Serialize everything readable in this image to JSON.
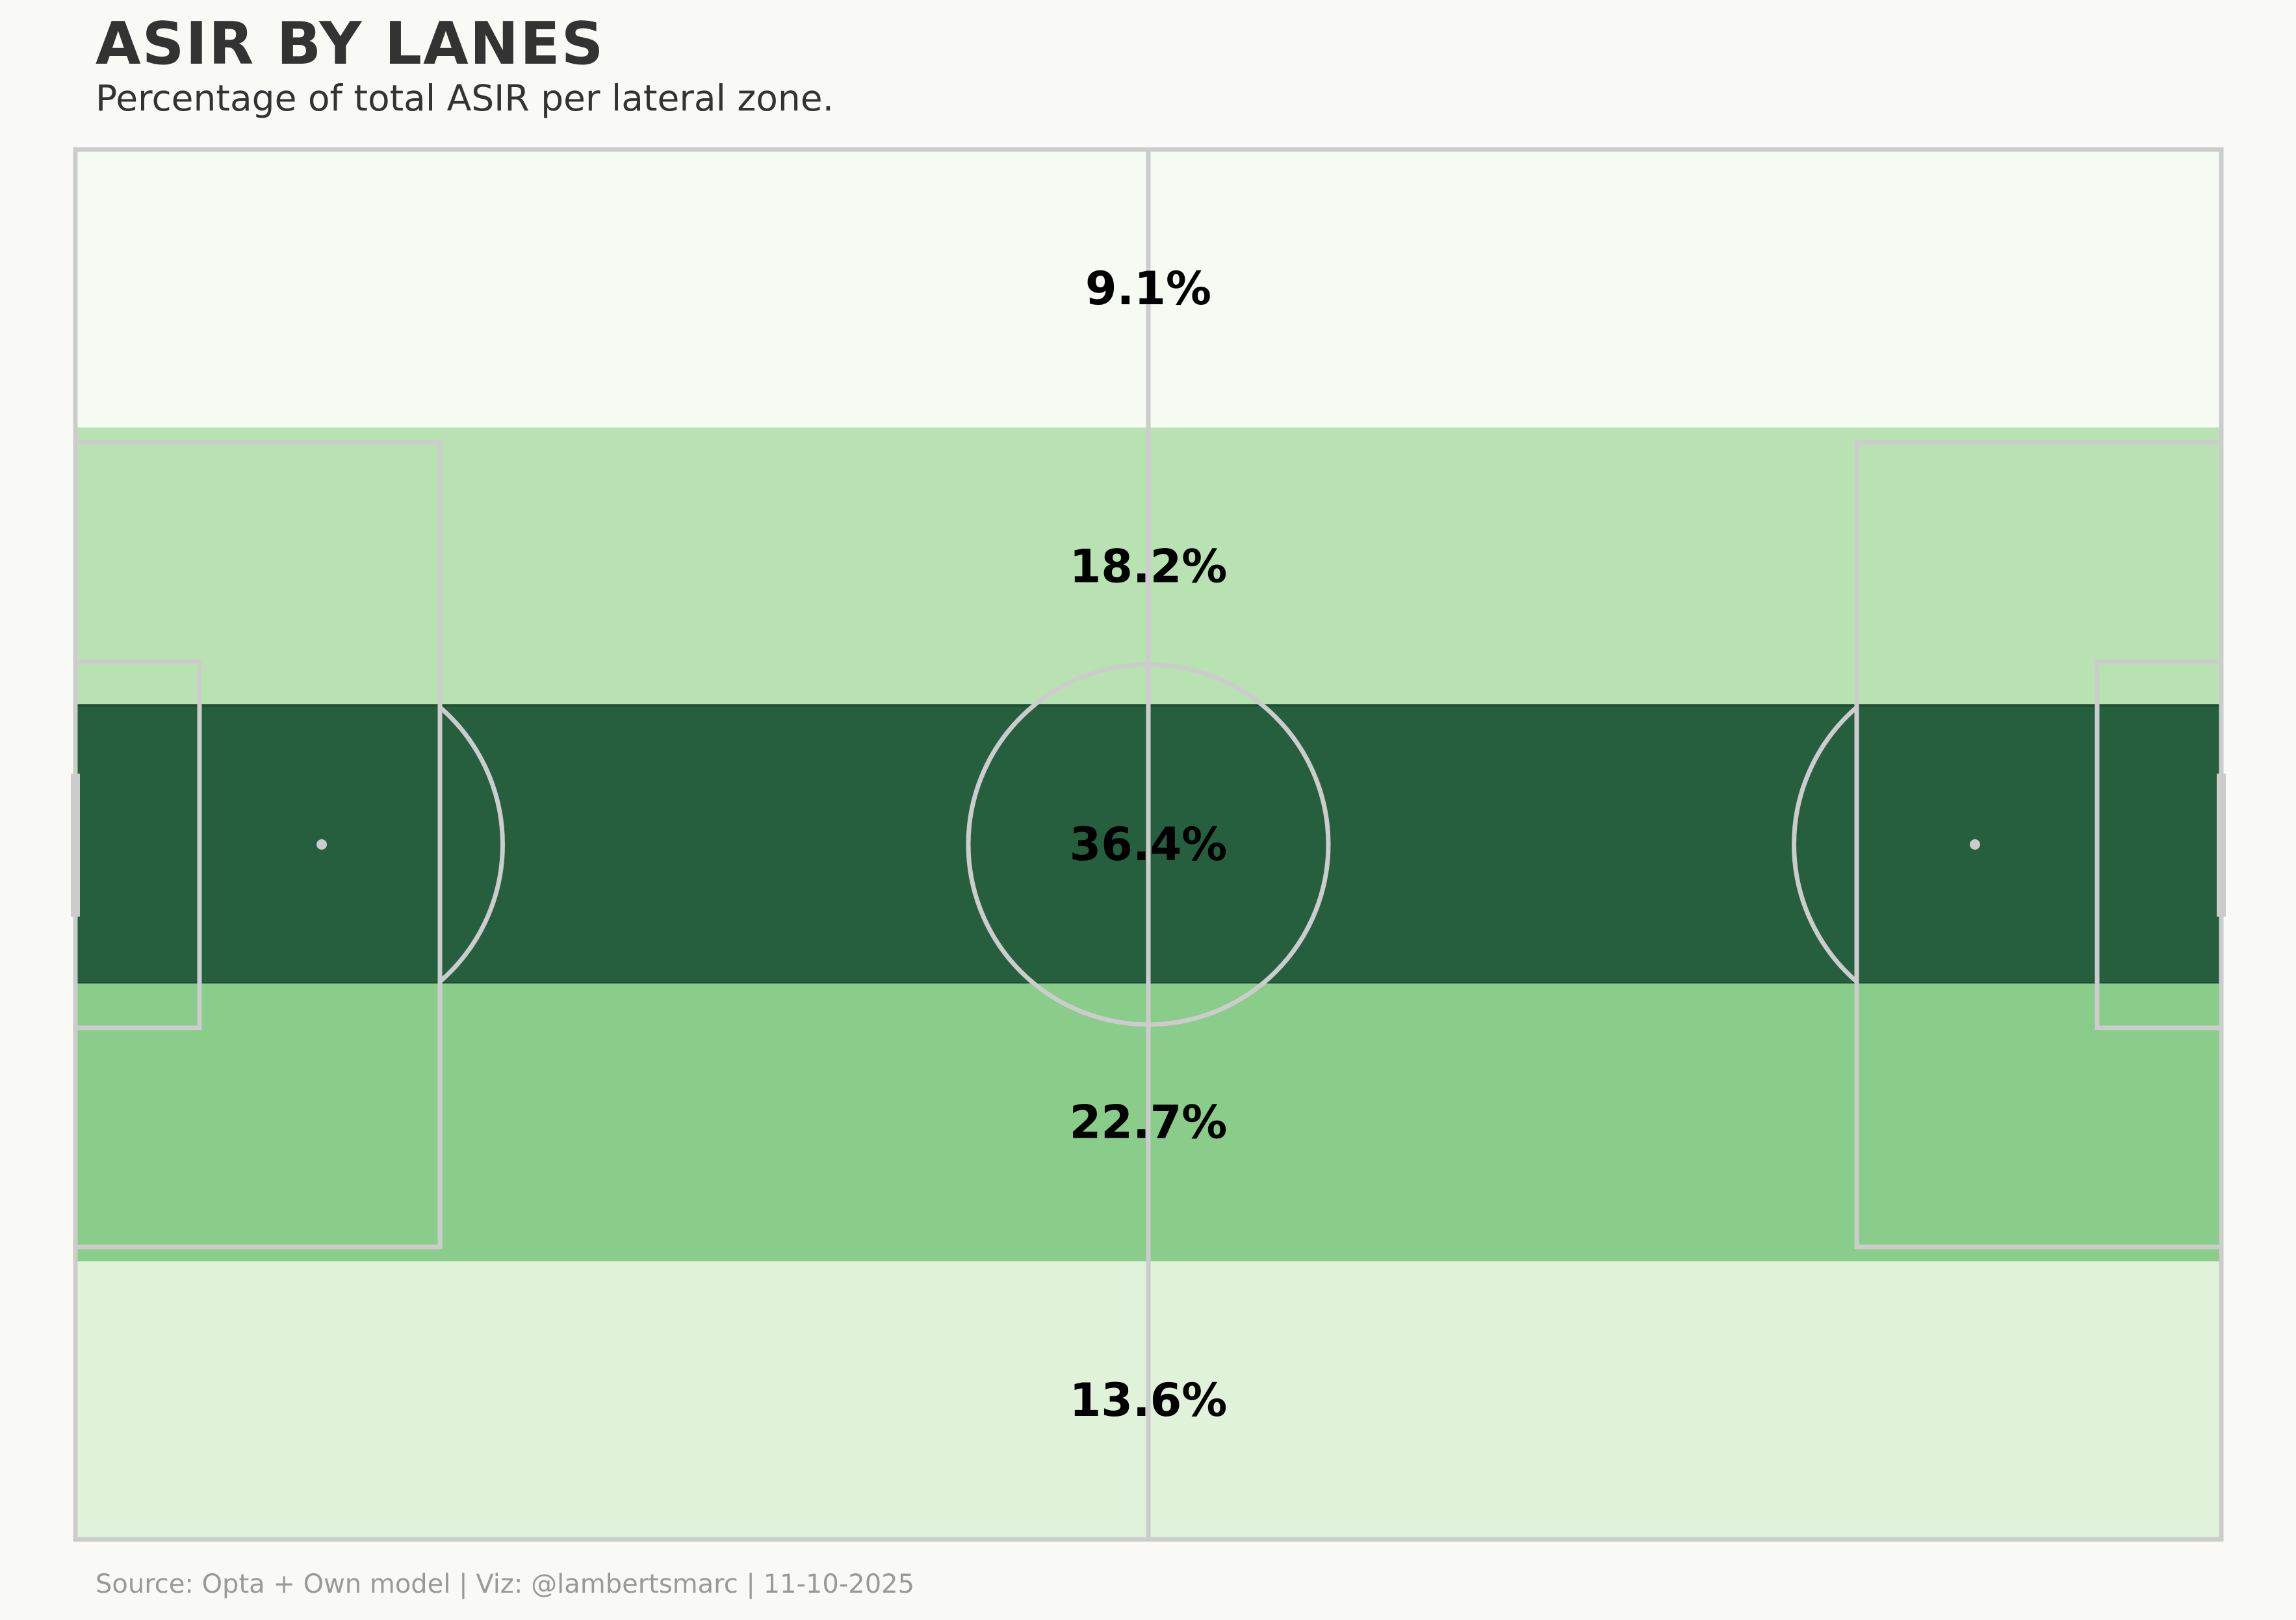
{
  "header": {
    "title": "ASIR BY LANES",
    "subtitle": "Percentage of total ASIR per lateral zone."
  },
  "footer": {
    "source": "Source: Opta + Own model | Viz: @lambertsmarc | 11-10-2025"
  },
  "chart_data": {
    "type": "heatmap",
    "orientation": "horizontal lanes on a football pitch",
    "lanes": [
      {
        "label": "9.1%",
        "value": 9.1,
        "color": "#f5faf3"
      },
      {
        "label": "18.2%",
        "value": 18.2,
        "color": "#b8e2b1"
      },
      {
        "label": "36.4%",
        "value": 36.4,
        "color": "#265f3e"
      },
      {
        "label": "22.7%",
        "value": 22.7,
        "color": "#8acc89"
      },
      {
        "label": "13.6%",
        "value": 13.6,
        "color": "#e0f2da"
      }
    ],
    "lane_border_color": "#1f4e32",
    "value_label_color": "#000000",
    "pitch_line_color": "#cccccc",
    "background_color": "#f9faf5"
  }
}
